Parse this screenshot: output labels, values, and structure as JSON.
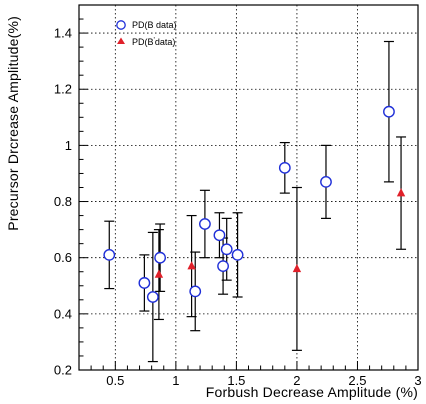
{
  "chart_data": {
    "type": "scatter",
    "title": "",
    "xlabel": "Forbush Decrease Amplitude (%)",
    "ylabel": "Precursor Drcrease Amplitude(%)",
    "xlim": [
      0.2,
      3.0
    ],
    "ylim": [
      0.2,
      1.5
    ],
    "x_ticks": [
      0.5,
      1.0,
      1.5,
      2.0,
      2.5,
      3.0
    ],
    "x_tick_labels": [
      "0.5",
      "1",
      "1.5",
      "2",
      "2.5",
      "3"
    ],
    "y_ticks": [
      0.2,
      0.4,
      0.6,
      0.8,
      1.0,
      1.2,
      1.4
    ],
    "y_tick_labels": [
      "0.2",
      "0.4",
      "0.6",
      "0.8",
      "1",
      "1.2",
      "1.4"
    ],
    "grid": true,
    "legend_position": "top-left",
    "series": [
      {
        "name": "PD(B data)",
        "marker": "open-circle",
        "color": "#1f2fd8",
        "points": [
          {
            "x": 0.45,
            "y": 0.61,
            "err": 0.12
          },
          {
            "x": 0.74,
            "y": 0.51,
            "err": 0.1
          },
          {
            "x": 0.81,
            "y": 0.46,
            "err": 0.23
          },
          {
            "x": 0.87,
            "y": 0.6,
            "err": 0.12
          },
          {
            "x": 1.16,
            "y": 0.48,
            "err": 0.14
          },
          {
            "x": 1.24,
            "y": 0.72,
            "err": 0.12
          },
          {
            "x": 1.36,
            "y": 0.68,
            "err": 0.08
          },
          {
            "x": 1.39,
            "y": 0.57,
            "err": 0.1
          },
          {
            "x": 1.42,
            "y": 0.63,
            "err": 0.11
          },
          {
            "x": 1.51,
            "y": 0.61,
            "err": 0.15
          },
          {
            "x": 1.9,
            "y": 0.92,
            "err": 0.09
          },
          {
            "x": 2.24,
            "y": 0.87,
            "err": 0.13
          },
          {
            "x": 2.76,
            "y": 1.12,
            "err": 0.25
          }
        ]
      },
      {
        "name": "PD(B'data)",
        "marker": "filled-triangle",
        "color": "#e0202a",
        "points": [
          {
            "x": 0.86,
            "y": 0.54,
            "err": 0.16
          },
          {
            "x": 1.13,
            "y": 0.57,
            "err": 0.18
          },
          {
            "x": 2.0,
            "y": 0.56,
            "err": 0.29
          },
          {
            "x": 2.86,
            "y": 0.83,
            "err": 0.2
          }
        ]
      }
    ]
  },
  "legend": {
    "circle_label": "PD(B data)",
    "triangle_label_prefix": "PD(B",
    "triangle_label_prime": "'",
    "triangle_label_suffix": "data)"
  }
}
